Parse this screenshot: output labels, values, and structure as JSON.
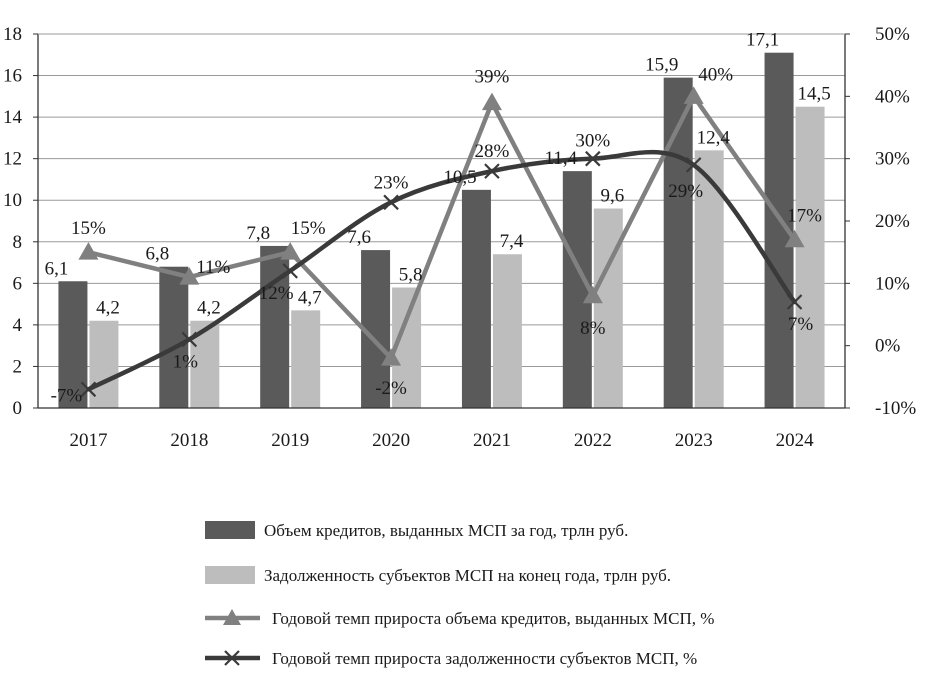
{
  "chart_data": {
    "type": "bar",
    "categories": [
      "2017",
      "2018",
      "2019",
      "2020",
      "2021",
      "2022",
      "2023",
      "2024"
    ],
    "series": [
      {
        "name": "Объем кредитов, выданных МСП за год, трлн руб.",
        "kind": "bar",
        "axis": "left",
        "color": "#5a5a5a",
        "values": [
          6.1,
          6.8,
          7.8,
          7.6,
          10.5,
          11.4,
          15.9,
          17.1
        ],
        "labels": [
          "6,1",
          "6,8",
          "7,8",
          "7,6",
          "10,5",
          "11,4",
          "15,9",
          "17,1"
        ]
      },
      {
        "name": "Задолженность субъектов МСП на конец года, трлн руб.",
        "kind": "bar",
        "axis": "left",
        "color": "#bdbdbd",
        "values": [
          4.2,
          4.2,
          4.7,
          5.8,
          7.4,
          9.6,
          12.4,
          14.5
        ],
        "labels": [
          "4,2",
          "4,2",
          "4,7",
          "5,8",
          "7,4",
          "9,6",
          "12,4",
          "14,5"
        ]
      },
      {
        "name": "Годовой темп прироста объема кредитов, выданных МСП, %",
        "kind": "line",
        "marker": "triangle",
        "axis": "right",
        "color": "#808080",
        "values": [
          15,
          11,
          15,
          -2,
          39,
          8,
          40,
          17
        ],
        "labels": [
          "15%",
          "11%",
          "15%",
          "-2%",
          "39%",
          "8%",
          "40%",
          "17%"
        ]
      },
      {
        "name": "Годовой темп прироста задолженности субъектов МСП, %",
        "kind": "line",
        "marker": "x",
        "axis": "right",
        "color": "#3a3a3a",
        "values": [
          -7,
          1,
          12,
          23,
          28,
          30,
          29,
          7
        ],
        "labels": [
          "-7%",
          "1%",
          "12%",
          "23%",
          "28%",
          "30%",
          "29%",
          "7%"
        ]
      }
    ],
    "y_left": {
      "min": 0,
      "max": 18,
      "step": 2,
      "ticks": [
        "0",
        "2",
        "4",
        "6",
        "8",
        "10",
        "12",
        "14",
        "16",
        "18"
      ]
    },
    "y_right": {
      "min": -10,
      "max": 50,
      "step": 10,
      "ticks": [
        "-10%",
        "0%",
        "10%",
        "20%",
        "30%",
        "40%",
        "50%"
      ]
    },
    "grid": true,
    "legend_position": "bottom"
  }
}
